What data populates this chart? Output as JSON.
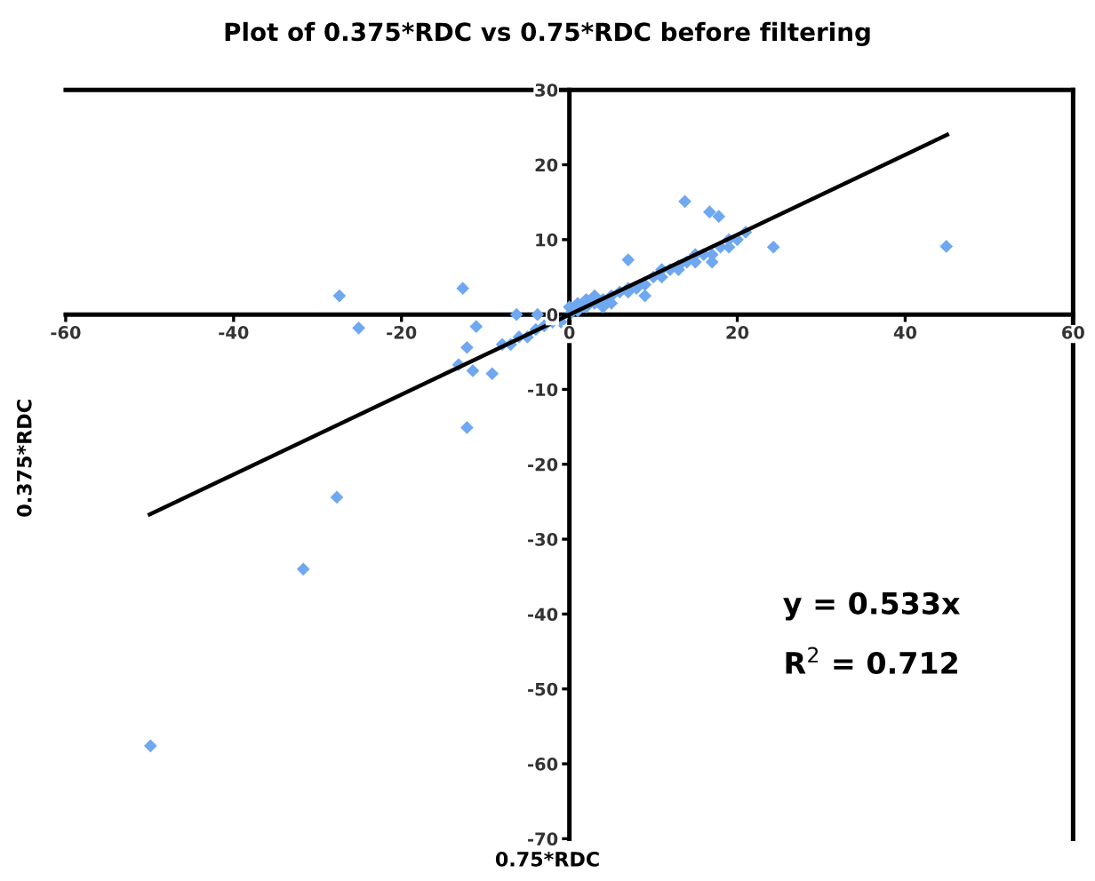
{
  "chart_data": {
    "type": "scatter",
    "title": "Plot of 0.375*RDC vs 0.75*RDC before filtering",
    "xlabel": "0.75*RDC",
    "ylabel": "0.375*RDC",
    "xlim": [
      -60,
      60
    ],
    "ylim": [
      -70,
      30
    ],
    "xticks": [
      -60,
      -40,
      -20,
      0,
      20,
      40,
      60
    ],
    "yticks": [
      -70,
      -60,
      -50,
      -40,
      -30,
      -20,
      -10,
      0,
      10,
      20,
      30
    ],
    "grid": false,
    "legend": false,
    "marker": "diamond",
    "annotations": [
      "y = 0.533x",
      "R$^{2}$ = 0.712"
    ],
    "series": [
      {
        "color": "#6fa8f0",
        "x": [
          -49.9,
          -31.7,
          -27.7,
          -27.4,
          -25.1,
          -12.7,
          -12.2,
          -11.1,
          -12.2,
          -13.2,
          -11.5,
          -9.2,
          -6.3,
          -3.8,
          -8,
          -7,
          -6,
          -5,
          -4,
          -3,
          -2,
          -1,
          0,
          1,
          2,
          3,
          4,
          5,
          6,
          7,
          8,
          9,
          10,
          11,
          12,
          13,
          14,
          15,
          16,
          17,
          18,
          19,
          20,
          21,
          1,
          3,
          5,
          7,
          9,
          11,
          13,
          15,
          17,
          19,
          0,
          2,
          4,
          7.0,
          13.75,
          16.7,
          17.8,
          24.3,
          44.9
        ],
        "values": [
          -57.6,
          -34,
          -24.4,
          2.5,
          -1.8,
          3.5,
          -15.1,
          -1.6,
          -4.4,
          -6.7,
          -7.5,
          -7.9,
          0,
          0,
          -4,
          -4,
          -3,
          -3,
          -2,
          -1.5,
          -1,
          -1,
          0,
          0.5,
          1,
          1.5,
          2,
          2.5,
          3,
          3,
          3.5,
          4,
          5,
          5,
          6,
          6.5,
          7,
          7,
          8,
          8,
          9,
          9,
          10,
          11,
          1.5,
          2.5,
          1.5,
          3.5,
          2.5,
          6,
          6,
          8,
          7,
          10,
          1,
          2,
          1,
          7.3,
          15.1,
          13.7,
          13.1,
          9.0,
          9.1
        ]
      },
      {
        "type": "line",
        "color": "#000000",
        "marker": "none",
        "x": [
          -50,
          45
        ],
        "values": [
          -26.7,
          24.0
        ]
      }
    ]
  }
}
